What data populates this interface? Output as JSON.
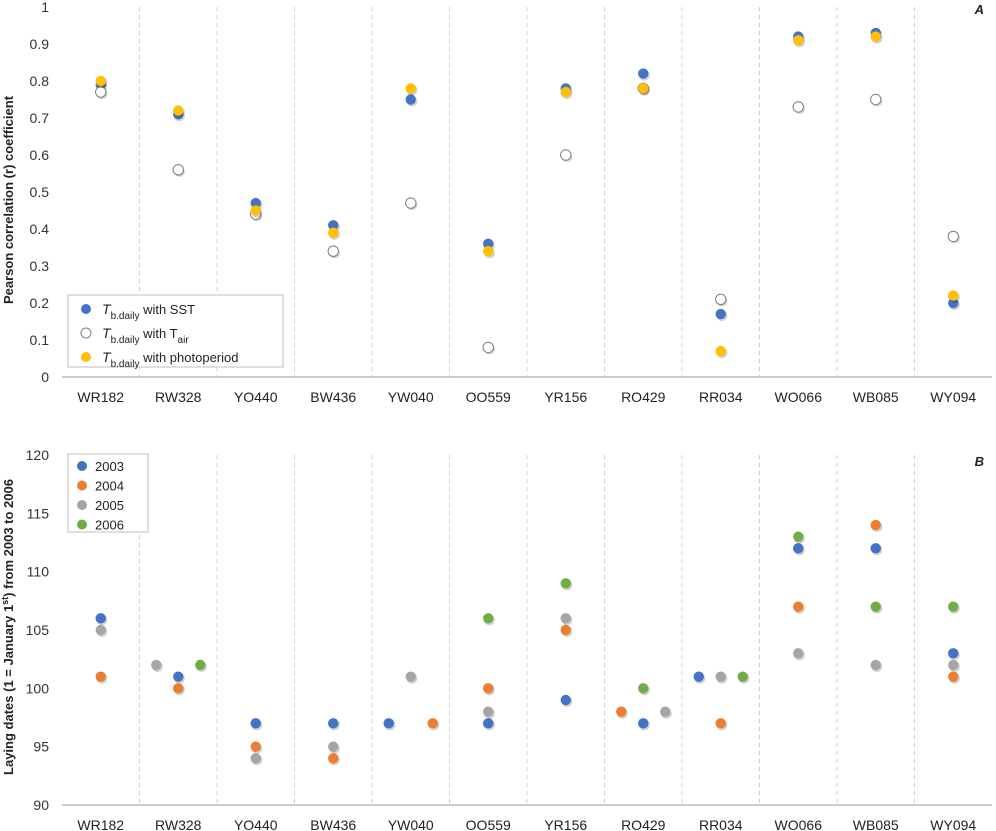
{
  "chart_data": [
    {
      "type": "scatter",
      "panel_label": "A",
      "ylabel": "Pearson correlation (r) coefficient",
      "ylim": [
        0,
        1
      ],
      "yticks": [
        0,
        0.1,
        0.2,
        0.3,
        0.4,
        0.5,
        0.6,
        0.7,
        0.8,
        0.9,
        1
      ],
      "ytick_labels": [
        "0",
        "0.1",
        "0.2",
        "0.3",
        "0.4",
        "0.5",
        "0.6",
        "0.7",
        "0.8",
        "0.9",
        "1"
      ],
      "categories": [
        "WR182",
        "RW328",
        "YO440",
        "BW436",
        "YW040",
        "OO559",
        "YR156",
        "RO429",
        "RR034",
        "WO066",
        "WB085",
        "WY094"
      ],
      "legend_position": "bottom-left",
      "series": [
        {
          "name": "T b.daily with SST",
          "legend": {
            "main": "T",
            "sub": "b.daily",
            "text": " with SST",
            "sub2": ""
          },
          "color": "#4472c4",
          "values": [
            0.79,
            0.71,
            0.47,
            0.41,
            0.75,
            0.36,
            0.78,
            0.82,
            0.17,
            0.92,
            0.93,
            0.2
          ]
        },
        {
          "name": "T b.daily with T air",
          "legend": {
            "main": "T",
            "sub": "b.daily",
            "text": " with T",
            "sub2": "air"
          },
          "color": "#ffffff",
          "values": [
            0.77,
            0.56,
            0.44,
            0.34,
            0.47,
            0.08,
            0.6,
            0.78,
            0.21,
            0.73,
            0.75,
            0.38
          ]
        },
        {
          "name": "T b.daily with photoperiod",
          "legend": {
            "main": "T",
            "sub": "b.daily",
            "text": " with photoperiod",
            "sub2": ""
          },
          "color": "#ffc000",
          "values": [
            0.8,
            0.72,
            0.45,
            0.39,
            0.78,
            0.34,
            0.77,
            0.78,
            0.07,
            0.91,
            0.92,
            0.22
          ]
        }
      ]
    },
    {
      "type": "scatter",
      "panel_label": "B",
      "ylabel_parts": [
        "Laying dates (1 = January 1",
        "st",
        ") from 2003 to 2006"
      ],
      "ylim": [
        90,
        120
      ],
      "yticks": [
        90,
        95,
        100,
        105,
        110,
        115,
        120
      ],
      "ytick_labels": [
        "90",
        "95",
        "100",
        "105",
        "110",
        "115",
        "120"
      ],
      "categories": [
        "WR182",
        "RW328",
        "YO440",
        "BW436",
        "YW040",
        "OO559",
        "YR156",
        "RO429",
        "RR034",
        "WO066",
        "WB085",
        "WY094"
      ],
      "legend_position": "top-left",
      "series": [
        {
          "name": "2003",
          "color": "#4472c4",
          "values": [
            106,
            101,
            97,
            97,
            97,
            97,
            99,
            97,
            101,
            112,
            112,
            103
          ]
        },
        {
          "name": "2004",
          "color": "#ed7d31",
          "values": [
            101,
            100,
            95,
            94,
            97,
            100,
            105,
            98,
            97,
            107,
            114,
            101
          ]
        },
        {
          "name": "2005",
          "color": "#a5a5a5",
          "values": [
            105,
            102,
            94,
            95,
            101,
            98,
            106,
            98,
            101,
            103,
            102,
            102
          ]
        },
        {
          "name": "2006",
          "color": "#70ad47",
          "values": [
            null,
            102,
            null,
            null,
            null,
            106,
            109,
            100,
            101,
            113,
            107,
            107
          ]
        }
      ],
      "point_offsets": [
        [
          0,
          0,
          0,
          null
        ],
        [
          0,
          0,
          -1,
          1
        ],
        [
          0,
          0,
          0,
          null
        ],
        [
          0,
          0,
          0,
          null
        ],
        [
          -1,
          1,
          0,
          null
        ],
        [
          0,
          0,
          0,
          0
        ],
        [
          0,
          0,
          0,
          0
        ],
        [
          0,
          -1,
          1,
          0
        ],
        [
          -1,
          0,
          0,
          1
        ],
        [
          0,
          0,
          0,
          0
        ],
        [
          0,
          0,
          0,
          0
        ],
        [
          0,
          0,
          0,
          0
        ]
      ]
    }
  ]
}
